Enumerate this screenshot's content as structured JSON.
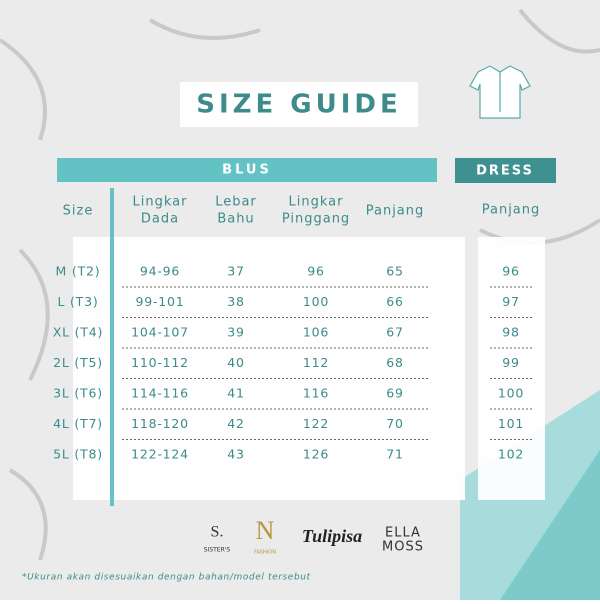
{
  "header": {
    "title": "SIZE GUIDE"
  },
  "table": {
    "group": "BLUS",
    "columns": [
      [
        "Size"
      ],
      [
        "Lingkar",
        "Dada"
      ],
      [
        "Lebar",
        "Bahu"
      ],
      [
        "Lingkar",
        "Pinggang"
      ],
      [
        "Panjang"
      ]
    ],
    "rows": [
      [
        "M (T2)",
        "94-96",
        37,
        96,
        65
      ],
      [
        "L (T3)",
        "99-101",
        38,
        100,
        66
      ],
      [
        "XL (T4)",
        "104-107",
        39,
        106,
        67
      ],
      [
        "2L (T5)",
        "110-112",
        40,
        112,
        68
      ],
      [
        "3L (T6)",
        "114-116",
        41,
        116,
        69
      ],
      [
        "4L (T7)",
        "118-120",
        42,
        122,
        70
      ],
      [
        "5L (T8)",
        "122-124",
        43,
        126,
        71
      ]
    ]
  },
  "dress": {
    "group": "DRESS",
    "column": "Panjang",
    "values": [
      96,
      97,
      98,
      99,
      100,
      101,
      102
    ]
  },
  "brands": [
    "S.",
    "SISTER'S",
    "N",
    "FASHION",
    "Tulipisa",
    "ELLA",
    "MOSS"
  ],
  "footnote": "*Ukuran akan disesuaikan dengan bahan/model tersebut"
}
